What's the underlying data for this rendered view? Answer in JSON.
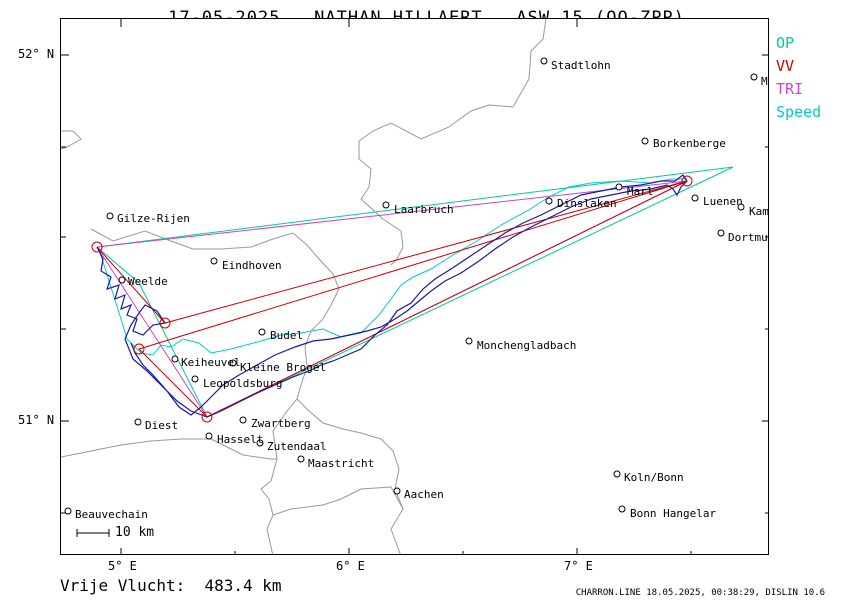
{
  "header": {
    "title": "17-05-2025   NATHAN HILLAERT   ASW 15 (OO-ZPP)"
  },
  "legend": [
    {
      "label": "OP",
      "color": "#00cc99"
    },
    {
      "label": "VV",
      "color": "#cc0000"
    },
    {
      "label": "TRI",
      "color": "#cc44cc"
    },
    {
      "label": "Speed",
      "color": "#00cccc"
    }
  ],
  "axes": {
    "lat_labels": [
      "52° N",
      "51° N"
    ],
    "lon_labels": [
      "5° E",
      "6° E",
      "7° E"
    ]
  },
  "places": [
    {
      "name": "Stadtlohn"
    },
    {
      "name": "Borkenberge"
    },
    {
      "name": "Gilze-Rijen"
    },
    {
      "name": "Laarbruch"
    },
    {
      "name": "Dinslaken"
    },
    {
      "name": "Marl"
    },
    {
      "name": "Luenen"
    },
    {
      "name": "Kam"
    },
    {
      "name": "Dortmu"
    },
    {
      "name": "M"
    },
    {
      "name": "Eindhoven"
    },
    {
      "name": "Weelde"
    },
    {
      "name": "Budel"
    },
    {
      "name": "Monchengladbach"
    },
    {
      "name": "Keiheuvel"
    },
    {
      "name": "Kleine Brogel"
    },
    {
      "name": "Leopoldsburg"
    },
    {
      "name": "Diest"
    },
    {
      "name": "Zwartberg"
    },
    {
      "name": "Hasselt"
    },
    {
      "name": "Zutendaal"
    },
    {
      "name": "Maastricht"
    },
    {
      "name": "Aachen"
    },
    {
      "name": "Koln/Bonn"
    },
    {
      "name": "Bonn Hangelar"
    },
    {
      "name": "Beauvechain"
    }
  ],
  "scale_bar": {
    "label": "10 km"
  },
  "footer": {
    "distance": "Vrije Vlucht:  483.4 km",
    "stamp": "CHARRON.LINE 18.05.2025, 00:38:29, DISLIN 10.6"
  }
}
